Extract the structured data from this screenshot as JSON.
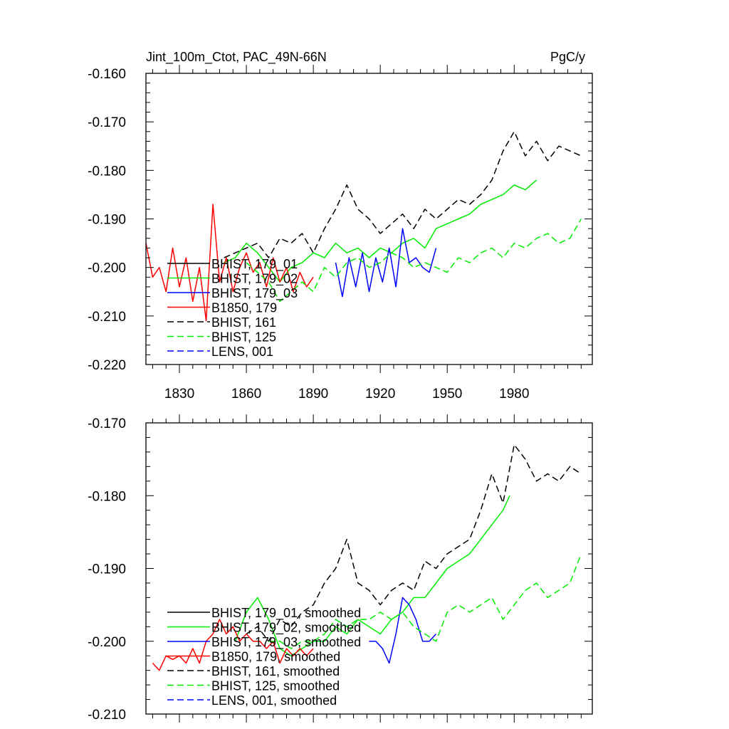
{
  "chart_data": [
    {
      "type": "line",
      "title": "Jint_100m_Ctot, PAC_49N-66N",
      "units": "PgC/y",
      "xlim": [
        1815,
        2015
      ],
      "ylim": [
        -0.22,
        -0.16
      ],
      "grid": false,
      "legend_position": "lower-left",
      "xticks": [
        1830,
        1860,
        1890,
        1920,
        1950,
        1980
      ],
      "xtick_labels": [
        "1830",
        "1860",
        "1890",
        "1920",
        "1950",
        "1980"
      ],
      "yticks": [
        -0.22,
        -0.21,
        -0.2,
        -0.19,
        -0.18,
        -0.17,
        -0.16
      ],
      "ytick_labels": [
        "-0.220",
        "-0.210",
        "-0.200",
        "-0.190",
        "-0.180",
        "-0.170",
        "-0.160"
      ],
      "series": [
        {
          "name": "BHIST, 179_01",
          "color": "#000000",
          "dash": false,
          "x": [],
          "values": []
        },
        {
          "name": "BHIST, 179_02",
          "color": "#00ee00",
          "dash": false,
          "x": [
            1850,
            1855,
            1860,
            1865,
            1870,
            1875,
            1880,
            1885,
            1890,
            1895,
            1900,
            1905,
            1910,
            1915,
            1920,
            1925,
            1930,
            1935,
            1940,
            1945,
            1950,
            1955,
            1960,
            1965,
            1970,
            1975,
            1980,
            1985,
            1990
          ],
          "values": [
            -0.199,
            -0.198,
            -0.195,
            -0.197,
            -0.2,
            -0.203,
            -0.2,
            -0.199,
            -0.197,
            -0.198,
            -0.195,
            -0.197,
            -0.196,
            -0.198,
            -0.196,
            -0.197,
            -0.195,
            -0.194,
            -0.196,
            -0.192,
            -0.191,
            -0.19,
            -0.189,
            -0.187,
            -0.186,
            -0.185,
            -0.183,
            -0.184,
            -0.182
          ]
        },
        {
          "name": "BHIST, 179_03",
          "color": "#0000ff",
          "dash": false,
          "x": [
            1900,
            1903,
            1906,
            1909,
            1912,
            1915,
            1918,
            1921,
            1924,
            1927,
            1930,
            1933,
            1936,
            1939,
            1942,
            1945
          ],
          "values": [
            -0.199,
            -0.206,
            -0.198,
            -0.204,
            -0.197,
            -0.205,
            -0.198,
            -0.203,
            -0.196,
            -0.204,
            -0.192,
            -0.199,
            -0.198,
            -0.2,
            -0.201,
            -0.196
          ]
        },
        {
          "name": "B1850, 179",
          "color": "#ff0000",
          "dash": false,
          "x": [
            1815,
            1818,
            1821,
            1824,
            1827,
            1830,
            1833,
            1836,
            1839,
            1842,
            1845,
            1848,
            1851,
            1854,
            1857,
            1860,
            1863,
            1866,
            1869,
            1872,
            1875,
            1878,
            1881,
            1884,
            1887,
            1890
          ],
          "values": [
            -0.195,
            -0.202,
            -0.2,
            -0.205,
            -0.196,
            -0.204,
            -0.198,
            -0.207,
            -0.2,
            -0.211,
            -0.187,
            -0.203,
            -0.198,
            -0.205,
            -0.2,
            -0.197,
            -0.201,
            -0.199,
            -0.204,
            -0.198,
            -0.203,
            -0.2,
            -0.205,
            -0.201,
            -0.204,
            -0.202
          ]
        },
        {
          "name": "BHIST, 161",
          "color": "#000000",
          "dash": true,
          "x": [
            1850,
            1855,
            1860,
            1865,
            1870,
            1875,
            1880,
            1885,
            1890,
            1895,
            1900,
            1905,
            1910,
            1915,
            1920,
            1925,
            1930,
            1935,
            1940,
            1945,
            1950,
            1955,
            1960,
            1965,
            1970,
            1975,
            1980,
            1985,
            1990,
            1995,
            2000,
            2005,
            2010
          ],
          "values": [
            -0.198,
            -0.197,
            -0.196,
            -0.195,
            -0.198,
            -0.194,
            -0.195,
            -0.193,
            -0.197,
            -0.192,
            -0.188,
            -0.183,
            -0.188,
            -0.19,
            -0.193,
            -0.191,
            -0.189,
            -0.192,
            -0.188,
            -0.19,
            -0.188,
            -0.186,
            -0.187,
            -0.185,
            -0.182,
            -0.176,
            -0.172,
            -0.177,
            -0.174,
            -0.178,
            -0.175,
            -0.176,
            -0.177
          ]
        },
        {
          "name": "BHIST, 125",
          "color": "#00ee00",
          "dash": true,
          "x": [
            1860,
            1865,
            1870,
            1875,
            1880,
            1885,
            1890,
            1895,
            1900,
            1905,
            1910,
            1915,
            1920,
            1925,
            1930,
            1935,
            1940,
            1945,
            1950,
            1955,
            1960,
            1965,
            1970,
            1975,
            1980,
            1985,
            1990,
            1995,
            2000,
            2005,
            2010
          ],
          "values": [
            -0.199,
            -0.201,
            -0.203,
            -0.207,
            -0.205,
            -0.203,
            -0.205,
            -0.2,
            -0.202,
            -0.199,
            -0.198,
            -0.2,
            -0.199,
            -0.197,
            -0.198,
            -0.2,
            -0.199,
            -0.2,
            -0.201,
            -0.198,
            -0.199,
            -0.197,
            -0.196,
            -0.198,
            -0.195,
            -0.196,
            -0.194,
            -0.193,
            -0.195,
            -0.194,
            -0.19
          ]
        },
        {
          "name": "LENS, 001",
          "color": "#0000ff",
          "dash": true,
          "x": [],
          "values": []
        }
      ]
    },
    {
      "type": "line",
      "title": "",
      "units": "",
      "xlim": [
        1815,
        2015
      ],
      "ylim": [
        -0.21,
        -0.17
      ],
      "grid": false,
      "legend_position": "lower-left",
      "xticks": [
        1830,
        1860,
        1890,
        1920,
        1950,
        1980
      ],
      "xtick_labels": [],
      "yticks": [
        -0.21,
        -0.2,
        -0.19,
        -0.18,
        -0.17
      ],
      "ytick_labels": [
        "-0.210",
        "-0.200",
        "-0.190",
        "-0.180",
        "-0.170"
      ],
      "series": [
        {
          "name": "BHIST, 179_01, smoothed",
          "color": "#000000",
          "dash": false,
          "x": [],
          "values": []
        },
        {
          "name": "BHIST, 179_02, smoothed",
          "color": "#00ee00",
          "dash": false,
          "x": [
            1855,
            1860,
            1865,
            1870,
            1875,
            1880,
            1885,
            1890,
            1895,
            1900,
            1905,
            1910,
            1915,
            1920,
            1925,
            1930,
            1935,
            1940,
            1945,
            1950,
            1955,
            1960,
            1965,
            1970,
            1975,
            1978
          ],
          "values": [
            -0.2,
            -0.196,
            -0.194,
            -0.197,
            -0.201,
            -0.202,
            -0.201,
            -0.2,
            -0.2,
            -0.198,
            -0.199,
            -0.197,
            -0.198,
            -0.199,
            -0.197,
            -0.196,
            -0.194,
            -0.194,
            -0.192,
            -0.19,
            -0.189,
            -0.188,
            -0.186,
            -0.184,
            -0.182,
            -0.18
          ]
        },
        {
          "name": "BHIST, 179_03, smoothed",
          "color": "#0000ff",
          "dash": false,
          "x": [
            1915,
            1918,
            1921,
            1924,
            1927,
            1930,
            1933,
            1936,
            1939,
            1942,
            1945
          ],
          "values": [
            -0.2,
            -0.2,
            -0.201,
            -0.203,
            -0.199,
            -0.194,
            -0.195,
            -0.197,
            -0.2,
            -0.2,
            -0.199
          ]
        },
        {
          "name": "B1850, 179, smoothed",
          "color": "#ff0000",
          "dash": false,
          "x": [
            1818,
            1821,
            1824,
            1827,
            1830,
            1833,
            1836,
            1839,
            1842,
            1845,
            1848,
            1851,
            1854,
            1857,
            1860,
            1863,
            1866,
            1869,
            1872,
            1875,
            1878,
            1881,
            1884,
            1887,
            1890
          ],
          "values": [
            -0.203,
            -0.204,
            -0.202,
            -0.2025,
            -0.202,
            -0.203,
            -0.201,
            -0.203,
            -0.2,
            -0.199,
            -0.197,
            -0.199,
            -0.198,
            -0.2,
            -0.199,
            -0.2,
            -0.2,
            -0.201,
            -0.2,
            -0.203,
            -0.201,
            -0.202,
            -0.201,
            -0.202,
            -0.201
          ]
        },
        {
          "name": "BHIST, 161, smoothed",
          "color": "#000000",
          "dash": true,
          "x": [
            1860,
            1865,
            1870,
            1875,
            1880,
            1885,
            1890,
            1895,
            1900,
            1905,
            1910,
            1915,
            1920,
            1925,
            1930,
            1935,
            1940,
            1945,
            1950,
            1955,
            1960,
            1965,
            1970,
            1975,
            1980,
            1985,
            1990,
            1995,
            2000,
            2005,
            2010
          ],
          "values": [
            -0.199,
            -0.198,
            -0.2,
            -0.197,
            -0.198,
            -0.196,
            -0.195,
            -0.192,
            -0.19,
            -0.186,
            -0.192,
            -0.193,
            -0.195,
            -0.193,
            -0.192,
            -0.193,
            -0.189,
            -0.19,
            -0.188,
            -0.187,
            -0.186,
            -0.182,
            -0.177,
            -0.181,
            -0.173,
            -0.175,
            -0.178,
            -0.177,
            -0.178,
            -0.176,
            -0.177
          ]
        },
        {
          "name": "BHIST, 125, smoothed",
          "color": "#00ee00",
          "dash": true,
          "x": [
            1870,
            1875,
            1880,
            1885,
            1890,
            1895,
            1900,
            1905,
            1910,
            1915,
            1920,
            1925,
            1930,
            1935,
            1940,
            1945,
            1950,
            1955,
            1960,
            1965,
            1970,
            1975,
            1980,
            1985,
            1990,
            1995,
            2000,
            2005,
            2010
          ],
          "values": [
            -0.2,
            -0.2,
            -0.201,
            -0.2,
            -0.2,
            -0.199,
            -0.197,
            -0.198,
            -0.197,
            -0.197,
            -0.196,
            -0.197,
            -0.196,
            -0.198,
            -0.199,
            -0.2,
            -0.196,
            -0.195,
            -0.196,
            -0.195,
            -0.194,
            -0.197,
            -0.195,
            -0.193,
            -0.192,
            -0.194,
            -0.193,
            -0.192,
            -0.188
          ]
        },
        {
          "name": "LENS, 001, smoothed",
          "color": "#0000ff",
          "dash": true,
          "x": [],
          "values": []
        }
      ]
    }
  ]
}
